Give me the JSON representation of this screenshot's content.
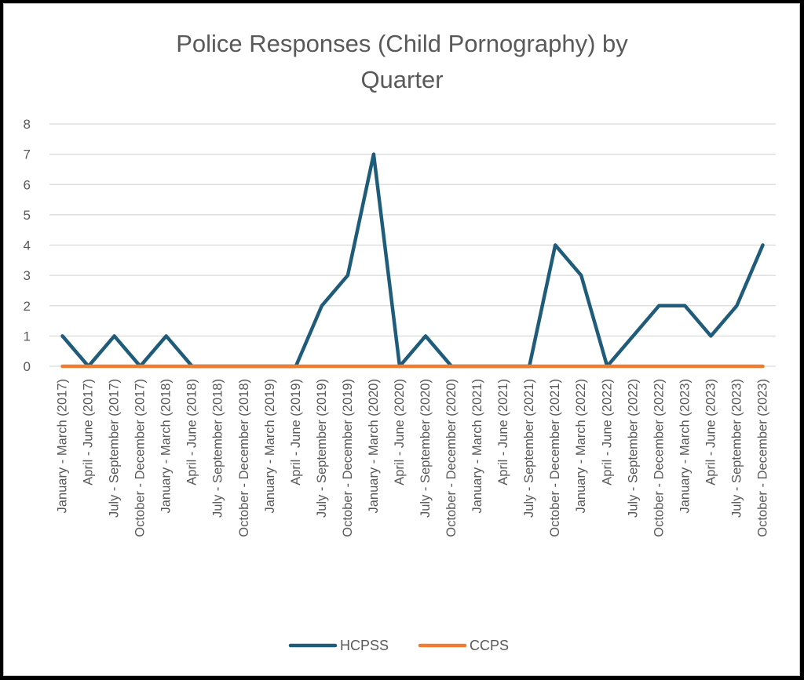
{
  "chart_data": {
    "type": "line",
    "title": "Police Responses (Child Pornography) by Quarter",
    "title_lines": [
      "Police Responses (Child Pornography) by",
      "Quarter"
    ],
    "xlabel": "",
    "ylabel": "",
    "ylim": [
      0,
      8
    ],
    "yticks": [
      0,
      1,
      2,
      3,
      4,
      5,
      6,
      7,
      8
    ],
    "grid": true,
    "legend_position": "bottom",
    "categories": [
      "January - March (2017)",
      "April - June (2017)",
      "July - September (2017)",
      "October - December (2017)",
      "January - March (2018)",
      "April - June (2018)",
      "July - September (2018)",
      "October - December (2018)",
      "January - March (2019)",
      "April - June (2019)",
      "July - September (2019)",
      "October - December (2019)",
      "January - March (2020)",
      "April - June (2020)",
      "July - September (2020)",
      "October - December (2020)",
      "January - March (2021)",
      "April - June (2021)",
      "July - September (2021)",
      "October - December (2021)",
      "January - March (2022)",
      "April - June (2022)",
      "July - September (2022)",
      "October - December (2022)",
      "January - March (2023)",
      "April - June (2023)",
      "July - September (2023)",
      "October - December (2023)"
    ],
    "series": [
      {
        "name": "HCPSS",
        "color": "#1f5c7a",
        "values": [
          1,
          0,
          1,
          0,
          1,
          0,
          0,
          0,
          0,
          0,
          2,
          3,
          7,
          0,
          1,
          0,
          0,
          0,
          0,
          4,
          3,
          0,
          1,
          2,
          2,
          1,
          2,
          4
        ]
      },
      {
        "name": "CCPS",
        "color": "#ed7d31",
        "values": [
          0,
          0,
          0,
          0,
          0,
          0,
          0,
          0,
          0,
          0,
          0,
          0,
          0,
          0,
          0,
          0,
          0,
          0,
          0,
          0,
          0,
          0,
          0,
          0,
          0,
          0,
          0,
          0
        ]
      }
    ]
  },
  "colors": {
    "grid": "#d9d9d9",
    "text": "#595959",
    "frame_border": "#bfbfbf"
  }
}
